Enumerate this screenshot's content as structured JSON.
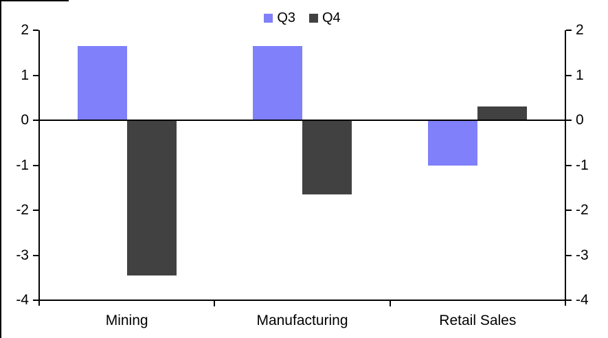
{
  "chart_data": {
    "type": "bar",
    "categories": [
      "Mining",
      "Manufacturing",
      "Retail Sales"
    ],
    "series": [
      {
        "name": "Q3",
        "color": "#7F80FA",
        "values": [
          1.65,
          1.65,
          -1.0
        ]
      },
      {
        "name": "Q4",
        "color": "#414141",
        "values": [
          -3.45,
          -1.65,
          0.3
        ]
      }
    ],
    "title": "",
    "xlabel": "",
    "ylabel": "",
    "ylim": [
      -4,
      2
    ],
    "yticks": [
      2,
      1,
      0,
      -1,
      -2,
      -3,
      -4
    ],
    "grid": false,
    "legend_position": "top-center",
    "dual_y_axis": true,
    "axis_color": "#000000",
    "background_color": "#FFFFFF"
  },
  "legend": {
    "q3_label": "Q3",
    "q4_label": "Q4"
  }
}
